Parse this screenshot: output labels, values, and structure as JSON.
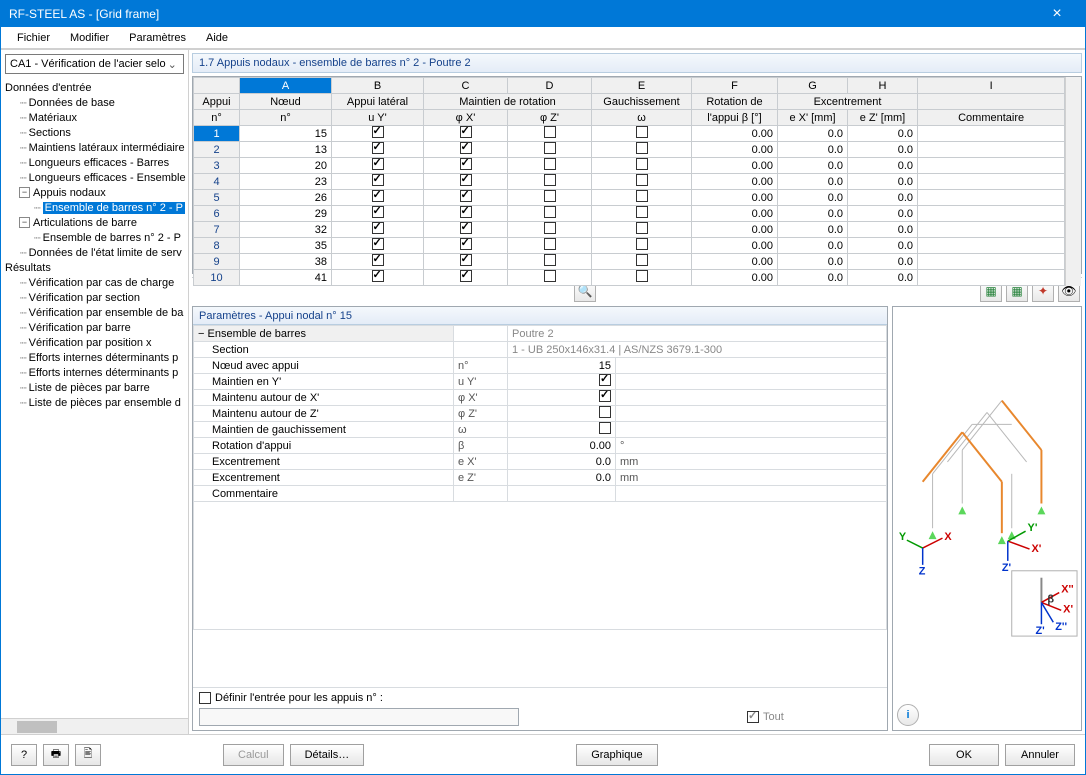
{
  "window": {
    "title": "RF-STEEL AS - [Grid frame]",
    "close": "×"
  },
  "menu": [
    "Fichier",
    "Modifier",
    "Paramètres",
    "Aide"
  ],
  "sidebar": {
    "combo": "CA1 - Vérification de l'acier selo",
    "nodes": [
      {
        "t": "Données d'entrée",
        "l": 0,
        "e": ""
      },
      {
        "t": "Données de base",
        "l": 1,
        "e": "d"
      },
      {
        "t": "Matériaux",
        "l": 1,
        "e": "d"
      },
      {
        "t": "Sections",
        "l": 1,
        "e": "d"
      },
      {
        "t": "Maintiens latéraux intermédiaire",
        "l": 1,
        "e": "d"
      },
      {
        "t": "Longueurs efficaces - Barres",
        "l": 1,
        "e": "d"
      },
      {
        "t": "Longueurs efficaces - Ensemble",
        "l": 1,
        "e": "d"
      },
      {
        "t": "Appuis nodaux",
        "l": 1,
        "e": "-"
      },
      {
        "t": "Ensemble de barres n° 2 - P",
        "l": 2,
        "e": "d",
        "sel": true
      },
      {
        "t": "Articulations de barre",
        "l": 1,
        "e": "-"
      },
      {
        "t": "Ensemble de barres n° 2 - P",
        "l": 2,
        "e": "d"
      },
      {
        "t": "Données de l'état limite de serv",
        "l": 1,
        "e": "d"
      },
      {
        "t": "Résultats",
        "l": 0,
        "e": ""
      },
      {
        "t": "Vérification par cas de charge",
        "l": 1,
        "e": "d"
      },
      {
        "t": "Vérification par section",
        "l": 1,
        "e": "d"
      },
      {
        "t": "Vérification par ensemble de ba",
        "l": 1,
        "e": "d"
      },
      {
        "t": "Vérification par barre",
        "l": 1,
        "e": "d"
      },
      {
        "t": "Vérification par position x",
        "l": 1,
        "e": "d"
      },
      {
        "t": "Efforts internes déterminants p",
        "l": 1,
        "e": "d"
      },
      {
        "t": "Efforts internes déterminants p",
        "l": 1,
        "e": "d"
      },
      {
        "t": "Liste de pièces par barre",
        "l": 1,
        "e": "d"
      },
      {
        "t": "Liste de pièces  par ensemble d",
        "l": 1,
        "e": "d"
      }
    ]
  },
  "section_title": "1.7 Appuis nodaux - ensemble de barres n° 2 - Poutre 2",
  "grid": {
    "letters": [
      "A",
      "B",
      "C",
      "D",
      "E",
      "F",
      "G",
      "H",
      "I"
    ],
    "head1": {
      "appui": "Appui",
      "noeud": "Nœud",
      "lat": "Appui latéral",
      "rot": "Maintien de rotation",
      "gauch": "Gauchissement",
      "rotb": "Rotation de",
      "exc": "Excentrement",
      "comm": "Commentaire"
    },
    "head2": {
      "n": "n°",
      "nn": "n°",
      "uy": "u Y'",
      "px": "φ X'",
      "pz": "φ Z'",
      "w": "ω",
      "beta": "l'appui β [°]",
      "ex": "e X'  [mm]",
      "ez": "e Z'  [mm]"
    },
    "rows": [
      {
        "i": "1",
        "n": "15",
        "b": true,
        "c": true,
        "d": false,
        "e": false,
        "f": "0.00",
        "g": "0.0",
        "h": "0.0",
        "sel": true
      },
      {
        "i": "2",
        "n": "13",
        "b": true,
        "c": true,
        "d": false,
        "e": false,
        "f": "0.00",
        "g": "0.0",
        "h": "0.0"
      },
      {
        "i": "3",
        "n": "20",
        "b": true,
        "c": true,
        "d": false,
        "e": false,
        "f": "0.00",
        "g": "0.0",
        "h": "0.0"
      },
      {
        "i": "4",
        "n": "23",
        "b": true,
        "c": true,
        "d": false,
        "e": false,
        "f": "0.00",
        "g": "0.0",
        "h": "0.0"
      },
      {
        "i": "5",
        "n": "26",
        "b": true,
        "c": true,
        "d": false,
        "e": false,
        "f": "0.00",
        "g": "0.0",
        "h": "0.0"
      },
      {
        "i": "6",
        "n": "29",
        "b": true,
        "c": true,
        "d": false,
        "e": false,
        "f": "0.00",
        "g": "0.0",
        "h": "0.0"
      },
      {
        "i": "7",
        "n": "32",
        "b": true,
        "c": true,
        "d": false,
        "e": false,
        "f": "0.00",
        "g": "0.0",
        "h": "0.0"
      },
      {
        "i": "8",
        "n": "35",
        "b": true,
        "c": true,
        "d": false,
        "e": false,
        "f": "0.00",
        "g": "0.0",
        "h": "0.0"
      },
      {
        "i": "9",
        "n": "38",
        "b": true,
        "c": true,
        "d": false,
        "e": false,
        "f": "0.00",
        "g": "0.0",
        "h": "0.0"
      },
      {
        "i": "10",
        "n": "41",
        "b": true,
        "c": true,
        "d": false,
        "e": false,
        "f": "0.00",
        "g": "0.0",
        "h": "0.0"
      }
    ]
  },
  "params": {
    "title": "Paramètres - Appui nodal n° 15",
    "ensemble_k": "Ensemble de barres",
    "ensemble_v": "Poutre 2",
    "section_k": "Section",
    "section_v": "1 - UB 250x146x31.4 | AS/NZS 3679.1-300",
    "noeud_k": "Nœud avec appui",
    "noeud_s": "n°",
    "noeud_v": "15",
    "my_k": "Maintien en Y'",
    "my_s": "u Y'",
    "my_v": true,
    "mx_k": "Maintenu autour de X'",
    "mx_s": "φ X'",
    "mx_v": true,
    "mz_k": "Maintenu autour de Z'",
    "mz_s": "φ Z'",
    "mz_v": false,
    "mg_k": "Maintien de gauchissement",
    "mg_s": "ω",
    "mg_v": false,
    "rot_k": "Rotation d'appui",
    "rot_s": "β",
    "rot_v": "0.00",
    "rot_u": "°",
    "ex_k": "Excentrement",
    "ex_s": "e X'",
    "ex_v": "0.0",
    "ex_u": "mm",
    "ez_k": "Excentrement",
    "ez_s": "e Z'",
    "ez_v": "0.0",
    "ez_u": "mm",
    "com_k": "Commentaire",
    "define": "Définir l'entrée pour les appuis n° :",
    "tout": "Tout"
  },
  "footer": {
    "calcul": "Calcul",
    "details": "Détails…",
    "graphique": "Graphique",
    "ok": "OK",
    "annuler": "Annuler"
  },
  "colors": {
    "accent": "#0078d7",
    "orange": "#e8872d"
  }
}
